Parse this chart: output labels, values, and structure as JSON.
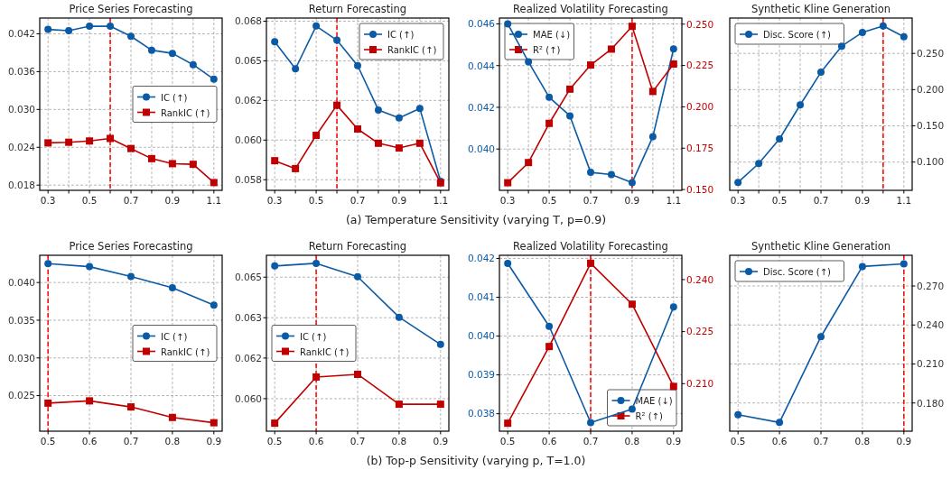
{
  "chart_data": [
    {
      "type": "line",
      "title": "Price Series Forecasting",
      "x": [
        0.3,
        0.4,
        0.5,
        0.6,
        0.7,
        0.8,
        0.9,
        1.0,
        1.1
      ],
      "xlim": [
        0.26,
        1.14
      ],
      "xticks": [
        0.3,
        {
          "value": 0.4,
          "label": null
        },
        0.5,
        {
          "value": 0.6,
          "label": null
        },
        0.7,
        {
          "value": 0.8,
          "label": null
        },
        0.9,
        {
          "value": 1.0,
          "label": null
        },
        1.1
      ],
      "ylim": [
        0.01717,
        0.0445
      ],
      "yticks": [
        {
          "value": 0.018,
          "label": "0.018"
        },
        {
          "value": 0.024,
          "label": "0.024"
        },
        {
          "value": 0.03,
          "label": "0.030"
        },
        {
          "value": 0.036,
          "label": "0.036"
        },
        {
          "value": 0.042,
          "label": "0.042"
        }
      ],
      "grid": true,
      "legend": "center right",
      "line_style": "solid",
      "series": [
        {
          "name": "IC (↑)",
          "color": "#0b5aa5",
          "marker": "circle",
          "values": [
            0.0427,
            0.0425,
            0.0432,
            0.0432,
            0.0416,
            0.0394,
            0.0389,
            0.0371,
            0.0348
          ]
        },
        {
          "name": "RankIC (↑)",
          "color": "#c00000",
          "marker": "square",
          "values": [
            0.0247,
            0.0248,
            0.025,
            0.0254,
            0.0238,
            0.0222,
            0.0214,
            0.0213,
            0.0184
          ]
        }
      ],
      "ref_lines": [
        {
          "axis": "x",
          "value": 0.6,
          "color": "#ff0000",
          "line_style": "dashed"
        }
      ],
      "annotations": [
        "(a) Temperature Sensitivity (varying T, p=0.9)"
      ]
    },
    {
      "type": "line",
      "title": "Return Forecasting",
      "x": [
        0.3,
        0.4,
        0.5,
        0.6,
        0.7,
        0.8,
        0.9,
        1.0,
        1.1
      ],
      "xlim": [
        0.26,
        1.14
      ],
      "xticks": [
        0.3,
        {
          "value": 0.4,
          "label": null
        },
        0.5,
        {
          "value": 0.6,
          "label": null
        },
        0.7,
        {
          "value": 0.8,
          "label": null
        },
        0.9,
        {
          "value": 1.0,
          "label": null
        },
        1.1
      ],
      "ylim": [
        0.05683,
        0.0677
      ],
      "yticks": [
        {
          "value": 0.0575,
          "label": "0.058"
        },
        {
          "value": 0.06,
          "label": "0.060"
        },
        {
          "value": 0.0625,
          "label": "0.062"
        },
        {
          "value": 0.065,
          "label": "0.065"
        },
        {
          "value": 0.0675,
          "label": "0.068"
        }
      ],
      "grid": true,
      "legend": "top right",
      "line_style": "solid",
      "series": [
        {
          "name": "IC (↑)",
          "color": "#0b5aa5",
          "marker": "circle",
          "values": [
            0.0662,
            0.0645,
            0.0672,
            0.0663,
            0.0647,
            0.0619,
            0.0614,
            0.062,
            0.0574
          ]
        },
        {
          "name": "RankIC (↑)",
          "color": "#c00000",
          "marker": "square",
          "values": [
            0.0587,
            0.0582,
            0.0603,
            0.0622,
            0.0607,
            0.0598,
            0.0595,
            0.0598,
            0.0573
          ]
        }
      ],
      "ref_lines": [
        {
          "axis": "x",
          "value": 0.6,
          "color": "#ff0000",
          "line_style": "dashed"
        }
      ]
    },
    {
      "type": "line",
      "title": "Realized Volatility Forecasting",
      "x": [
        0.3,
        0.4,
        0.5,
        0.6,
        0.7,
        0.8,
        0.9,
        1.0,
        1.1
      ],
      "xlim": [
        0.26,
        1.14
      ],
      "xticks": [
        0.3,
        {
          "value": 0.4,
          "label": null
        },
        0.5,
        {
          "value": 0.6,
          "label": null
        },
        0.7,
        {
          "value": 0.8,
          "label": null
        },
        0.9,
        {
          "value": 1.0,
          "label": null
        },
        1.1
      ],
      "ylim": [
        0.03802,
        0.04628
      ],
      "yticks": [
        {
          "value": 0.04,
          "label": "0.040"
        },
        {
          "value": 0.042,
          "label": "0.042"
        },
        {
          "value": 0.044,
          "label": "0.044"
        },
        {
          "value": 0.046,
          "label": "0.046"
        }
      ],
      "y2lim": [
        0.1495,
        0.2537
      ],
      "y2ticks": [
        {
          "value": 0.15,
          "label": "0.150"
        },
        {
          "value": 0.175,
          "label": "0.175"
        },
        {
          "value": 0.2,
          "label": "0.200"
        },
        {
          "value": 0.225,
          "label": "0.225"
        },
        {
          "value": 0.25,
          "label": "0.250"
        }
      ],
      "grid": true,
      "legend": "top left",
      "line_style": "solid",
      "series": [
        {
          "name": "MAE (↓)",
          "color": "#0b5aa5",
          "marker": "circle",
          "values": [
            0.046,
            0.04418,
            0.04248,
            0.04159,
            0.03888,
            0.03878,
            0.03839,
            0.04059,
            0.0448
          ]
        },
        {
          "name": "R² (↑)",
          "color": "#c00000",
          "marker": "square",
          "axis": "y2",
          "values": [
            0.1541,
            0.1663,
            0.19,
            0.2107,
            0.2253,
            0.2349,
            0.2487,
            0.2093,
            0.2259
          ]
        }
      ],
      "ref_lines": [
        {
          "axis": "x",
          "value": 0.9,
          "color": "#ff0000",
          "line_style": "dashed"
        }
      ]
    },
    {
      "type": "line",
      "title": "Synthetic Kline Generation",
      "x": [
        0.3,
        0.4,
        0.5,
        0.6,
        0.7,
        0.8,
        0.9,
        1.0,
        1.1
      ],
      "xlim": [
        0.26,
        1.14
      ],
      "xticks": [
        0.3,
        {
          "value": 0.4,
          "label": null
        },
        0.5,
        {
          "value": 0.6,
          "label": null
        },
        0.7,
        {
          "value": 0.8,
          "label": null
        },
        0.9,
        {
          "value": 1.0,
          "label": null
        },
        1.1
      ],
      "y2lim": [
        0.061,
        0.2988
      ],
      "y2ticks": [
        {
          "value": 0.1,
          "label": "0.100"
        },
        {
          "value": 0.15,
          "label": "0.150"
        },
        {
          "value": 0.2,
          "label": "0.200"
        },
        {
          "value": 0.25,
          "label": "0.250"
        }
      ],
      "grid": true,
      "legend": "top left",
      "line_style": "solid",
      "series": [
        {
          "name": "Disc. Score (↑)",
          "color": "#0b5aa5",
          "marker": "circle",
          "axis": "y2",
          "values": [
            0.072,
            0.098,
            0.132,
            0.179,
            0.224,
            0.26,
            0.279,
            0.288,
            0.273
          ]
        }
      ],
      "ref_lines": [
        {
          "axis": "x",
          "value": 1.0,
          "color": "#ff0000",
          "line_style": "dashed"
        }
      ]
    },
    {
      "type": "line",
      "title": "Price Series Forecasting",
      "x": [
        0.5,
        0.6,
        0.7,
        0.8,
        0.9
      ],
      "xlim": [
        0.48,
        0.92
      ],
      "xticks": [
        0.5,
        0.6,
        0.7,
        0.8,
        0.9
      ],
      "ylim": [
        0.02028,
        0.04361
      ],
      "yticks": [
        {
          "value": 0.025,
          "label": "0.025"
        },
        {
          "value": 0.03,
          "label": "0.030"
        },
        {
          "value": 0.035,
          "label": "0.035"
        },
        {
          "value": 0.04,
          "label": "0.040"
        }
      ],
      "grid": true,
      "legend": "center right",
      "line_style": "solid",
      "series": [
        {
          "name": "IC (↑)",
          "color": "#0b5aa5",
          "marker": "circle",
          "values": [
            0.0425,
            0.0421,
            0.0408,
            0.0393,
            0.037
          ]
        },
        {
          "name": "RankIC (↑)",
          "color": "#c00000",
          "marker": "square",
          "values": [
            0.024,
            0.0243,
            0.0235,
            0.0221,
            0.0214
          ]
        }
      ],
      "ref_lines": [
        {
          "axis": "x",
          "value": 0.5,
          "color": "#ff0000",
          "line_style": "dashed"
        }
      ],
      "annotations": [
        "(b) Top-p Sensitivity (varying p, T=1.0)"
      ]
    },
    {
      "type": "line",
      "title": "Return Forecasting",
      "x": [
        0.5,
        0.6,
        0.7,
        0.8,
        0.9
      ],
      "xlim": [
        0.48,
        0.92
      ],
      "xticks": [
        0.5,
        0.6,
        0.7,
        0.8,
        0.9
      ],
      "ylim": [
        0.05866,
        0.0659
      ],
      "yticks": [
        {
          "value": 0.06,
          "label": "0.060"
        },
        {
          "value": 0.06167,
          "label": "0.062"
        },
        {
          "value": 0.06333,
          "label": "0.063"
        },
        {
          "value": 0.065,
          "label": "0.065"
        }
      ],
      "grid": true,
      "legend": "center left",
      "line_style": "solid",
      "series": [
        {
          "name": "IC (↑)",
          "color": "#0b5aa5",
          "marker": "circle",
          "values": [
            0.06546,
            0.06557,
            0.06502,
            0.06335,
            0.06223
          ]
        },
        {
          "name": "RankIC (↑)",
          "color": "#c00000",
          "marker": "square",
          "values": [
            0.05899,
            0.06089,
            0.061,
            0.05977,
            0.05977
          ]
        }
      ],
      "ref_lines": [
        {
          "axis": "x",
          "value": 0.6,
          "color": "#ff0000",
          "line_style": "dashed"
        }
      ]
    },
    {
      "type": "line",
      "title": "Realized Volatility Forecasting",
      "x": [
        0.5,
        0.6,
        0.7,
        0.8,
        0.9
      ],
      "xlim": [
        0.48,
        0.92
      ],
      "xticks": [
        0.5,
        0.6,
        0.7,
        0.8,
        0.9
      ],
      "ylim": [
        0.03755,
        0.04208
      ],
      "yticks": [
        {
          "value": 0.038,
          "label": "0.038"
        },
        {
          "value": 0.039,
          "label": "0.039"
        },
        {
          "value": 0.04,
          "label": "0.040"
        },
        {
          "value": 0.041,
          "label": "0.041"
        },
        {
          "value": 0.042,
          "label": "0.042"
        }
      ],
      "y2lim": [
        0.1963,
        0.247
      ],
      "y2ticks": [
        {
          "value": 0.21,
          "label": "0.210"
        },
        {
          "value": 0.225,
          "label": "0.225"
        },
        {
          "value": 0.24,
          "label": "0.240"
        }
      ],
      "grid": true,
      "legend": "bottom right",
      "line_style": "solid",
      "series": [
        {
          "name": "MAE (↓)",
          "color": "#0b5aa5",
          "marker": "circle",
          "values": [
            0.04187,
            0.04025,
            0.03777,
            0.03812,
            0.04075
          ]
        },
        {
          "name": "R² (↑)",
          "color": "#c00000",
          "marker": "square",
          "axis": "y2",
          "values": [
            0.1986,
            0.2207,
            0.2447,
            0.2329,
            0.2092
          ]
        }
      ],
      "ref_lines": [
        {
          "axis": "x",
          "value": 0.7,
          "color": "#ff0000",
          "line_style": "dashed"
        }
      ]
    },
    {
      "type": "line",
      "title": "Synthetic Kline Generation",
      "x": [
        0.5,
        0.6,
        0.7,
        0.8,
        0.9
      ],
      "xlim": [
        0.48,
        0.92
      ],
      "xticks": [
        0.5,
        0.6,
        0.7,
        0.8,
        0.9
      ],
      "y2lim": [
        0.1583,
        0.2936
      ],
      "y2ticks": [
        {
          "value": 0.18,
          "label": "0.180"
        },
        {
          "value": 0.21,
          "label": "0.210"
        },
        {
          "value": 0.24,
          "label": "0.240"
        },
        {
          "value": 0.27,
          "label": "0.270"
        }
      ],
      "grid": true,
      "legend": "top left",
      "line_style": "solid",
      "series": [
        {
          "name": "Disc. Score (↑)",
          "color": "#0b5aa5",
          "marker": "circle",
          "axis": "y2",
          "values": [
            0.171,
            0.165,
            0.231,
            0.285,
            0.287
          ]
        }
      ],
      "ref_lines": [
        {
          "axis": "x",
          "value": 0.9,
          "color": "#ff0000",
          "line_style": "dashed"
        }
      ]
    }
  ]
}
